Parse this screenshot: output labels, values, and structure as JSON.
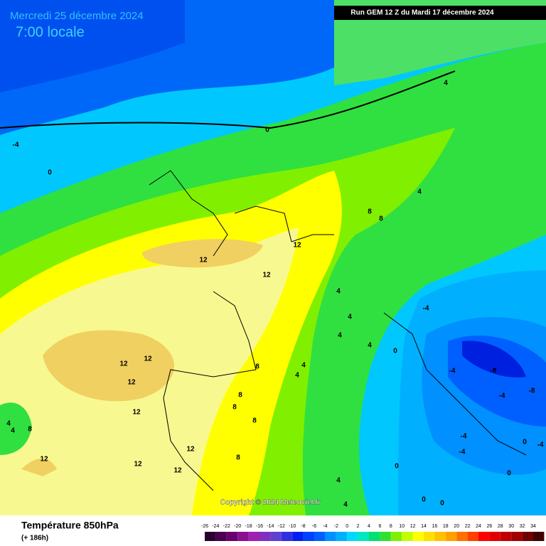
{
  "header": {
    "date": "Mercredi 25 décembre 2024",
    "time": "7:00 locale",
    "run": "Run GEM 12 Z du Mardi 17 décembre 2024"
  },
  "copyright": "Copyright © 2024 Meteociel.fr",
  "footer": {
    "title": "Température 850hPa",
    "lead": "(+ 186h)"
  },
  "map": {
    "contour_labels": [
      -4,
      0,
      0,
      4,
      4,
      8,
      8,
      12,
      12,
      12,
      4,
      -4,
      4,
      4,
      4,
      0,
      12,
      12,
      12,
      8,
      4,
      4,
      -4,
      -8,
      -8,
      -4,
      8,
      8,
      8,
      12,
      4,
      4,
      8,
      -4,
      0,
      -4,
      -4,
      12,
      12,
      12,
      12,
      8,
      0,
      0,
      4,
      0,
      0,
      4
    ]
  },
  "legend": {
    "ticks": [
      -26,
      -24,
      -22,
      -20,
      -18,
      -16,
      -14,
      -12,
      -10,
      -8,
      -6,
      -4,
      -2,
      0,
      2,
      4,
      6,
      8,
      10,
      12,
      14,
      16,
      18,
      20,
      22,
      24,
      26,
      28,
      30,
      32,
      34
    ],
    "colors": [
      "#2a0030",
      "#4a0050",
      "#6a0070",
      "#8a1090",
      "#a020b0",
      "#8030c0",
      "#6040d0",
      "#3030e0",
      "#0020f0",
      "#0040ff",
      "#0060ff",
      "#0090ff",
      "#00b0ff",
      "#00d8ff",
      "#00e8c0",
      "#00e070",
      "#30e030",
      "#80f000",
      "#c0ff00",
      "#ffff00",
      "#ffe000",
      "#ffc000",
      "#ffa000",
      "#ff7000",
      "#ff4000",
      "#ff0000",
      "#e00000",
      "#c00000",
      "#a00000",
      "#700000",
      "#400000"
    ]
  }
}
